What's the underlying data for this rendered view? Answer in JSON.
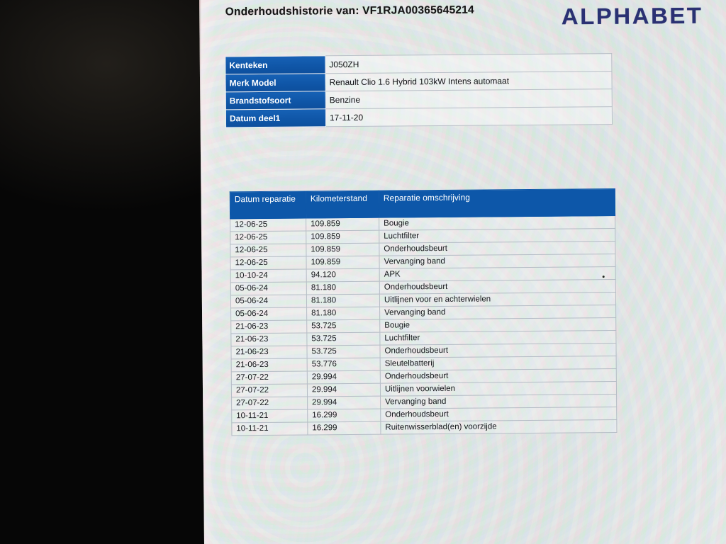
{
  "page": {
    "title": "Onderhoudshistorie van: VF1RJA00365645214",
    "brand": "ALPHABET"
  },
  "colors": {
    "brand_navy": "#2a3173",
    "table_header_blue": "#0d57a9",
    "info_label_blue": "#0f55a6",
    "screen_background": "#e9ece9",
    "bezel_black": "#060606"
  },
  "vehicle_info": {
    "rows": [
      {
        "label": "Kenteken",
        "value": "J050ZH"
      },
      {
        "label": "Merk Model",
        "value": "Renault Clio 1.6 Hybrid 103kW Intens automaat"
      },
      {
        "label": "Brandstofsoort",
        "value": "Benzine"
      },
      {
        "label": "Datum deel1",
        "value": "17-11-20"
      }
    ]
  },
  "maintenance_table": {
    "columns": [
      "Datum reparatie",
      "Kilometerstand",
      "Reparatie omschrijving"
    ],
    "rows": [
      {
        "datum": "12-06-25",
        "km": "109.859",
        "oms": "Bougie"
      },
      {
        "datum": "12-06-25",
        "km": "109.859",
        "oms": "Luchtfilter"
      },
      {
        "datum": "12-06-25",
        "km": "109.859",
        "oms": "Onderhoudsbeurt"
      },
      {
        "datum": "12-06-25",
        "km": "109.859",
        "oms": "Vervanging band"
      },
      {
        "datum": "10-10-24",
        "km": "94.120",
        "oms": "APK"
      },
      {
        "datum": "05-06-24",
        "km": "81.180",
        "oms": "Onderhoudsbeurt"
      },
      {
        "datum": "05-06-24",
        "km": "81.180",
        "oms": "Uitlijnen voor en achterwielen"
      },
      {
        "datum": "05-06-24",
        "km": "81.180",
        "oms": "Vervanging band"
      },
      {
        "datum": "21-06-23",
        "km": "53.725",
        "oms": "Bougie"
      },
      {
        "datum": "21-06-23",
        "km": "53.725",
        "oms": "Luchtfilter"
      },
      {
        "datum": "21-06-23",
        "km": "53.725",
        "oms": "Onderhoudsbeurt"
      },
      {
        "datum": "21-06-23",
        "km": "53.776",
        "oms": "Sleutelbatterij"
      },
      {
        "datum": "27-07-22",
        "km": "29.994",
        "oms": "Onderhoudsbeurt"
      },
      {
        "datum": "27-07-22",
        "km": "29.994",
        "oms": "Uitlijnen voorwielen"
      },
      {
        "datum": "27-07-22",
        "km": "29.994",
        "oms": "Vervanging band"
      },
      {
        "datum": "10-11-21",
        "km": "16.299",
        "oms": "Onderhoudsbeurt"
      },
      {
        "datum": "10-11-21",
        "km": "16.299",
        "oms": "Ruitenwisserblad(en) voorzijde"
      }
    ]
  }
}
